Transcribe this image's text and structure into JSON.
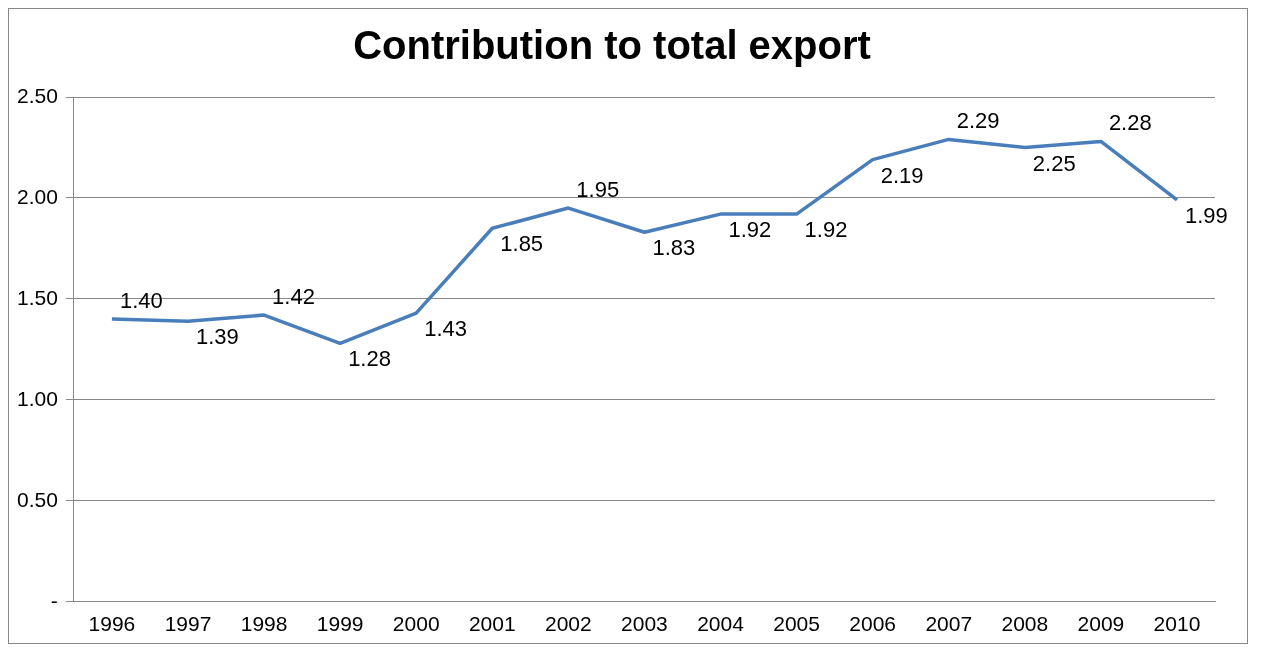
{
  "chart_data": {
    "type": "line",
    "title": "Contribution to total export",
    "categories": [
      "1996",
      "1997",
      "1998",
      "1999",
      "2000",
      "2001",
      "2002",
      "2003",
      "2004",
      "2005",
      "2006",
      "2007",
      "2008",
      "2009",
      "2010"
    ],
    "series": [
      {
        "color": "#4a7ebb",
        "values": [
          1.4,
          1.39,
          1.42,
          1.28,
          1.43,
          1.85,
          1.95,
          1.83,
          1.92,
          1.92,
          2.19,
          2.29,
          2.25,
          2.28,
          1.99
        ],
        "value_labels": [
          "1.40",
          "1.39",
          "1.42",
          "1.28",
          "1.43",
          "1.85",
          "1.95",
          "1.83",
          "1.92",
          "1.92",
          "2.19",
          "2.29",
          "2.25",
          "2.28",
          "1.99"
        ]
      }
    ],
    "ylim": [
      0,
      2.5
    ],
    "yticks": [
      {
        "value": 0,
        "label": "-"
      },
      {
        "value": 0.5,
        "label": "0.50"
      },
      {
        "value": 1,
        "label": "1.00"
      },
      {
        "value": 1.5,
        "label": "1.50"
      },
      {
        "value": 2,
        "label": "2.00"
      },
      {
        "value": 2.5,
        "label": "2.50"
      }
    ],
    "grid": "y",
    "legend": false,
    "marker": "none",
    "line_style": "solid"
  }
}
